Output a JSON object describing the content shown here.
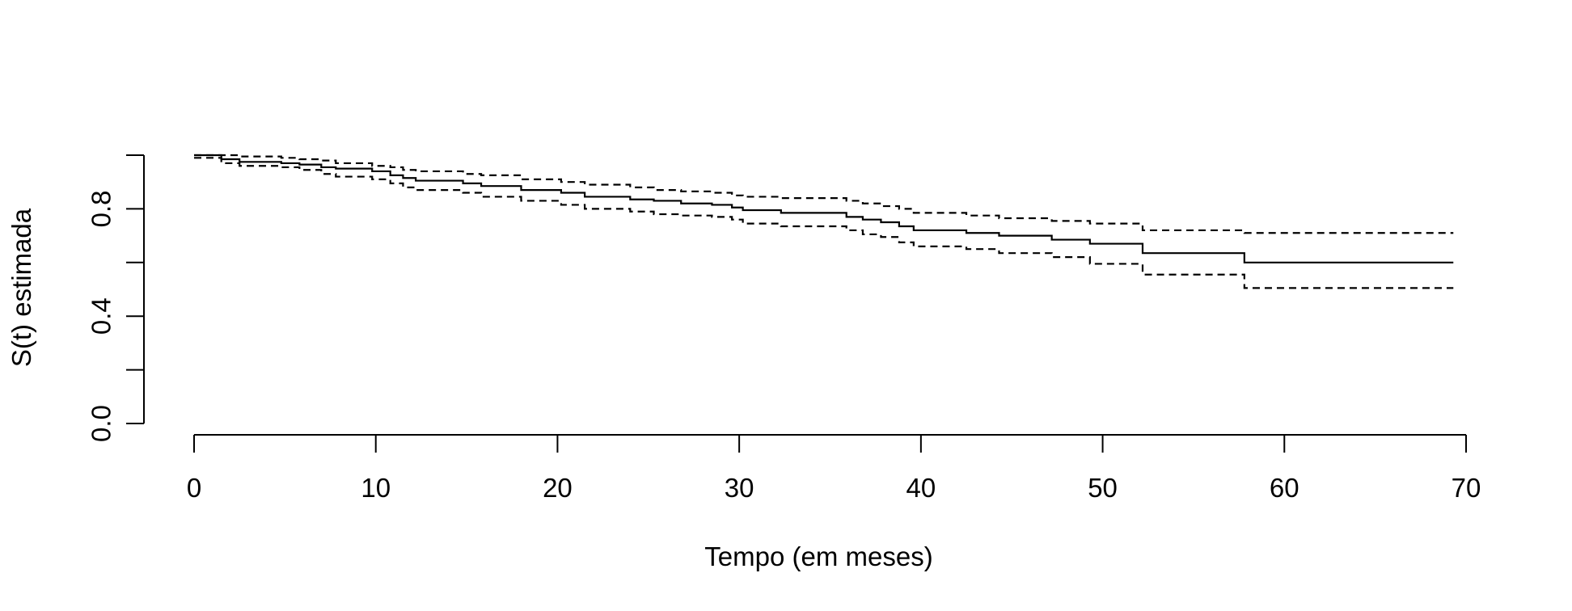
{
  "chart_data": {
    "type": "line",
    "xlabel": "Tempo (em meses)",
    "ylabel": "S(t) estimada",
    "xlim": [
      0,
      70
    ],
    "ylim": [
      0,
      1
    ],
    "x_ticks": [
      0,
      10,
      20,
      30,
      40,
      50,
      60,
      70
    ],
    "y_ticks": [
      0.0,
      0.2,
      0.4,
      0.6,
      0.8,
      1.0
    ],
    "y_tick_labels": [
      "0.0",
      "",
      "0.4",
      "",
      "0.8",
      ""
    ],
    "grid": false,
    "step": true,
    "series": [
      {
        "style": "solid",
        "x": [
          0,
          1.5,
          2.5,
          4.8,
          5.8,
          7,
          7.8,
          9.8,
          10.8,
          11.5,
          12.2,
          14.8,
          15.8,
          18,
          20.2,
          21.5,
          24,
          25.3,
          26.8,
          28.5,
          29.6,
          30.2,
          32.3,
          35.9,
          36.8,
          37.8,
          38.8,
          39.6,
          42.5,
          44.3,
          47.2,
          49.3,
          52.2,
          57.8,
          69.3
        ],
        "y": [
          1.0,
          0.985,
          0.975,
          0.97,
          0.965,
          0.955,
          0.95,
          0.94,
          0.925,
          0.915,
          0.905,
          0.895,
          0.885,
          0.87,
          0.86,
          0.845,
          0.835,
          0.83,
          0.82,
          0.815,
          0.805,
          0.795,
          0.785,
          0.77,
          0.76,
          0.75,
          0.735,
          0.72,
          0.71,
          0.7,
          0.685,
          0.67,
          0.635,
          0.6,
          0.6
        ]
      },
      {
        "style": "dashed",
        "x": [
          0,
          1.5,
          2.5,
          4.8,
          5.8,
          7,
          7.8,
          9.8,
          10.8,
          11.5,
          12.2,
          14.8,
          15.8,
          18,
          20.2,
          21.5,
          24,
          25.3,
          26.8,
          28.5,
          29.6,
          30.2,
          32.3,
          35.9,
          36.8,
          37.8,
          38.8,
          39.6,
          42.5,
          44.3,
          47.2,
          49.3,
          52.2,
          57.8,
          69.3
        ],
        "y": [
          1.0,
          1.0,
          0.995,
          0.99,
          0.985,
          0.98,
          0.97,
          0.96,
          0.955,
          0.945,
          0.94,
          0.93,
          0.925,
          0.91,
          0.9,
          0.89,
          0.88,
          0.87,
          0.865,
          0.86,
          0.85,
          0.845,
          0.84,
          0.83,
          0.82,
          0.81,
          0.8,
          0.785,
          0.775,
          0.765,
          0.755,
          0.745,
          0.72,
          0.71,
          0.71
        ]
      },
      {
        "style": "dashed",
        "x": [
          0,
          1.5,
          2.5,
          4.8,
          5.8,
          7,
          7.8,
          9.8,
          10.8,
          11.5,
          12.2,
          14.8,
          15.8,
          18,
          20.2,
          21.5,
          24,
          25.3,
          26.8,
          28.5,
          29.6,
          30.2,
          32.3,
          35.9,
          36.8,
          37.8,
          38.8,
          39.6,
          42.5,
          44.3,
          47.2,
          49.3,
          52.2,
          57.8,
          69.3
        ],
        "y": [
          0.99,
          0.97,
          0.96,
          0.955,
          0.945,
          0.93,
          0.92,
          0.91,
          0.895,
          0.88,
          0.87,
          0.86,
          0.845,
          0.83,
          0.815,
          0.8,
          0.79,
          0.78,
          0.775,
          0.77,
          0.76,
          0.745,
          0.735,
          0.72,
          0.705,
          0.695,
          0.675,
          0.66,
          0.65,
          0.635,
          0.62,
          0.595,
          0.555,
          0.505,
          0.505
        ]
      }
    ]
  }
}
